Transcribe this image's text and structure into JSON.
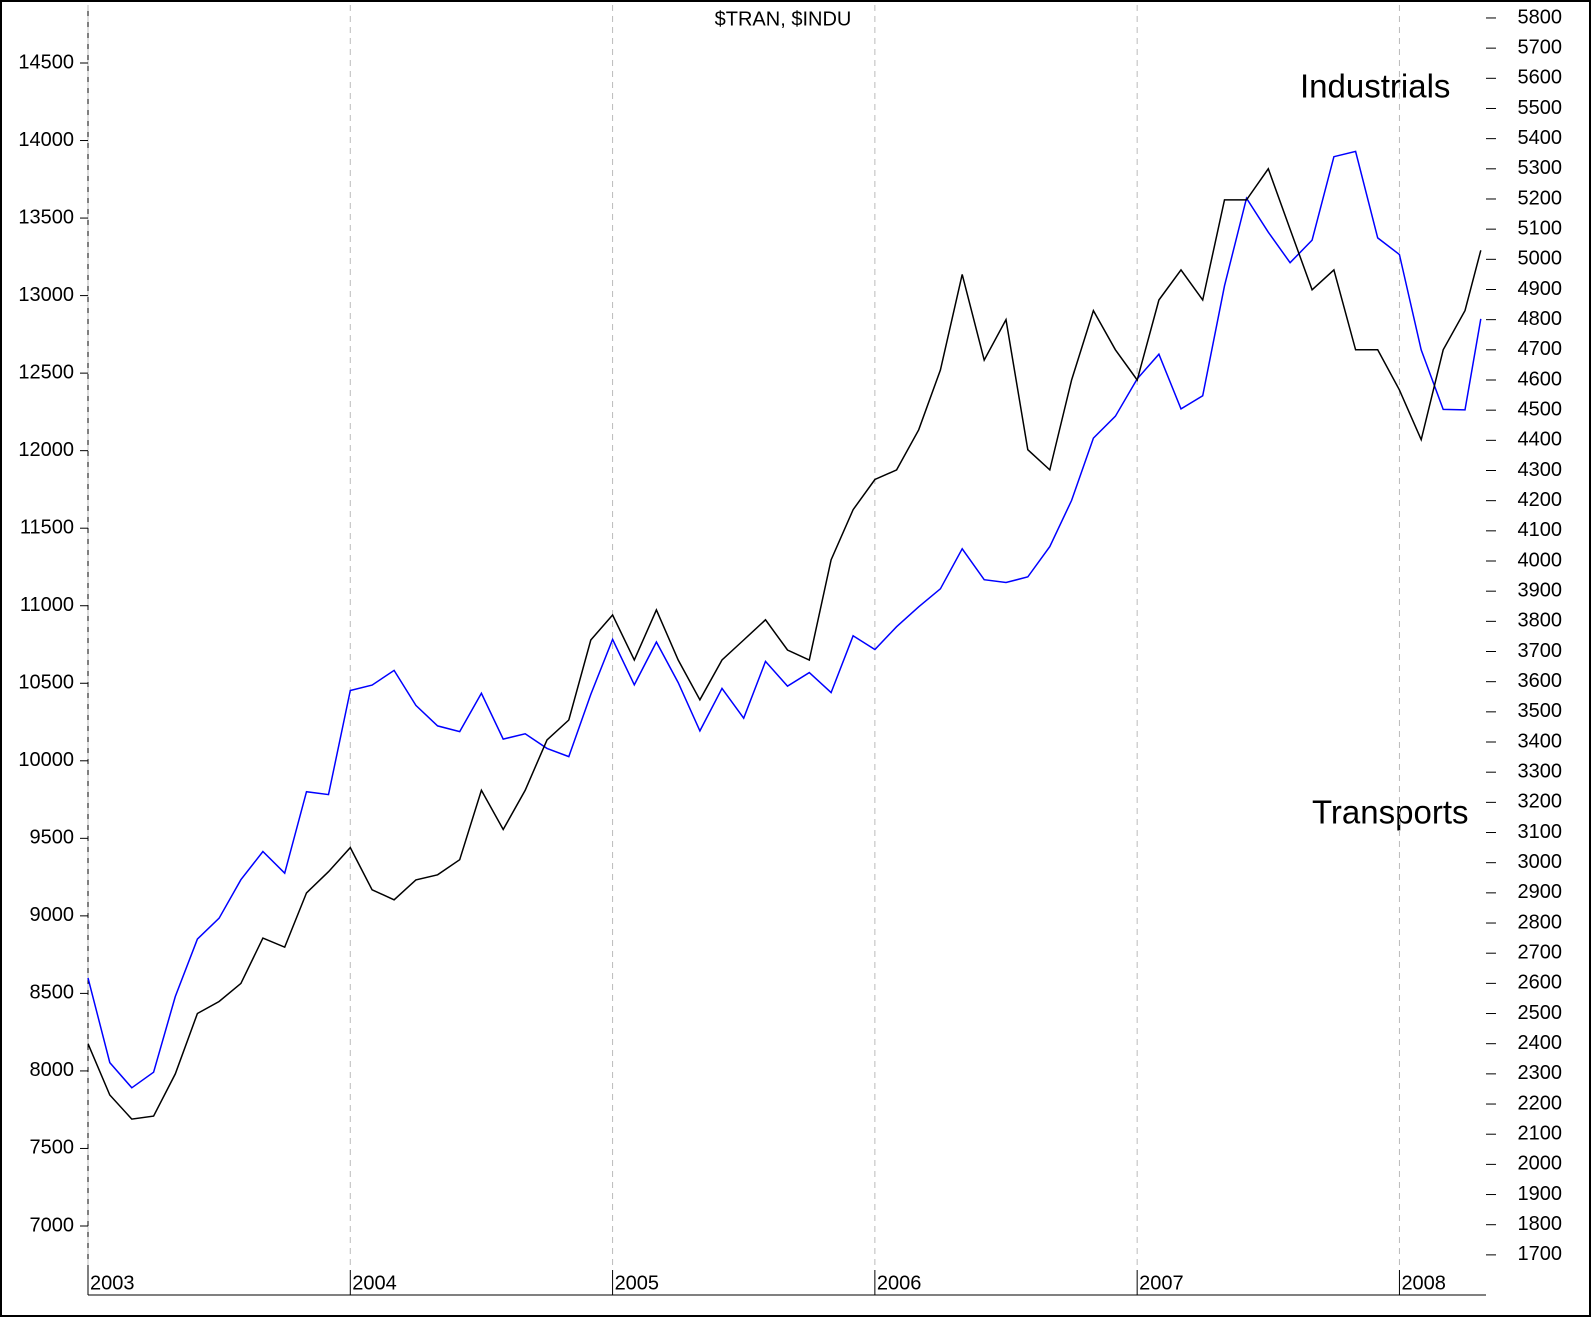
{
  "chart_data": {
    "type": "line",
    "title": "$TRAN, $INDU",
    "annotations": [
      {
        "text": "Industrials",
        "color": "#0000ff"
      },
      {
        "text": "Transports",
        "color": "#000000"
      }
    ],
    "x": [
      2003,
      2003.083,
      2003.167,
      2003.25,
      2003.333,
      2003.417,
      2003.5,
      2003.583,
      2003.667,
      2003.75,
      2003.833,
      2003.917,
      2004,
      2004.083,
      2004.167,
      2004.25,
      2004.333,
      2004.417,
      2004.5,
      2004.583,
      2004.667,
      2004.75,
      2004.833,
      2004.917,
      2005,
      2005.083,
      2005.167,
      2005.25,
      2005.333,
      2005.417,
      2005.5,
      2005.583,
      2005.667,
      2005.75,
      2005.833,
      2005.917,
      2006,
      2006.083,
      2006.167,
      2006.25,
      2006.333,
      2006.417,
      2006.5,
      2006.583,
      2006.667,
      2006.75,
      2006.833,
      2006.917,
      2007,
      2007.083,
      2007.167,
      2007.25,
      2007.333,
      2007.417,
      2007.5,
      2007.583,
      2007.667,
      2007.75,
      2007.833,
      2007.917,
      2008,
      2008.083,
      2008.167,
      2008.25,
      2008.31
    ],
    "series": [
      {
        "name": "$INDU",
        "color": "#0000ff",
        "axis": "y",
        "values": [
          8600,
          8054,
          7891,
          7992,
          8480,
          8850,
          8985,
          9233,
          9415,
          9275,
          9801,
          9782,
          10453,
          10488,
          10583,
          10357,
          10225,
          10188,
          10435,
          10140,
          10174,
          10080,
          10027,
          10428,
          10783,
          10490,
          10766,
          10504,
          10193,
          10467,
          10275,
          10641,
          10482,
          10569,
          10440,
          10806,
          10718,
          10865,
          10993,
          11109,
          11367,
          11168,
          11150,
          11186,
          11381,
          11679,
          12081,
          12222,
          12463,
          12622,
          12269,
          12354,
          13063,
          13628,
          13409,
          13212,
          13358,
          13896,
          13930,
          13372,
          13265,
          12650,
          12266,
          12263,
          12850
        ]
      },
      {
        "name": "$TRAN",
        "color": "#000000",
        "axis": "y2",
        "values": [
          2400,
          2230,
          2150,
          2160,
          2300,
          2500,
          2540,
          2600,
          2750,
          2720,
          2900,
          2970,
          3050,
          2910,
          2877,
          2943,
          2960,
          3010,
          3240,
          3110,
          3240,
          3407,
          3473,
          3738,
          3821,
          3672,
          3838,
          3672,
          3540,
          3672,
          3738,
          3805,
          3705,
          3672,
          4004,
          4170,
          4270,
          4302,
          4435,
          4633,
          4950,
          4666,
          4800,
          4369,
          4302,
          4600,
          4830,
          4700,
          4600,
          4865,
          4965,
          4865,
          5197,
          5197,
          5300,
          5100,
          4899,
          4965,
          4700,
          4700,
          4567,
          4402,
          4700,
          4830,
          5030
        ]
      }
    ],
    "xlim": [
      2003,
      2008.33
    ],
    "xticks": [
      2003,
      2004,
      2005,
      2006,
      2007,
      2008
    ],
    "ylim": [
      6555,
      14874
    ],
    "yticks": [
      7000,
      7500,
      8000,
      8500,
      9000,
      9500,
      10000,
      10500,
      11000,
      11500,
      12000,
      12500,
      13000,
      13500,
      14000,
      14500
    ],
    "y2lim": [
      1567,
      5843
    ],
    "y2ticks": [
      1700,
      1800,
      1900,
      2000,
      2100,
      2200,
      2300,
      2400,
      2500,
      2600,
      2700,
      2800,
      2900,
      3000,
      3100,
      3200,
      3300,
      3400,
      3500,
      3600,
      3700,
      3800,
      3900,
      4000,
      4100,
      4200,
      4300,
      4400,
      4500,
      4600,
      4700,
      4800,
      4900,
      5000,
      5100,
      5200,
      5300,
      5400,
      5500,
      5600,
      5700,
      5800
    ],
    "grid": true
  }
}
